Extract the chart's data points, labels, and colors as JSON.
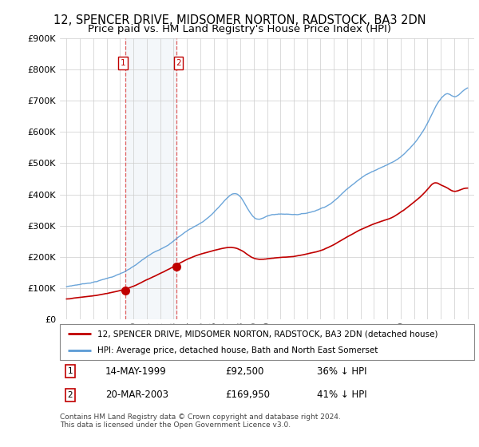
{
  "title": "12, SPENCER DRIVE, MIDSOMER NORTON, RADSTOCK, BA3 2DN",
  "subtitle": "Price paid vs. HM Land Registry's House Price Index (HPI)",
  "hpi_label": "HPI: Average price, detached house, Bath and North East Somerset",
  "property_label": "12, SPENCER DRIVE, MIDSOMER NORTON, RADSTOCK, BA3 2DN (detached house)",
  "footer": "Contains HM Land Registry data © Crown copyright and database right 2024.\nThis data is licensed under the Open Government Licence v3.0.",
  "sale1_date": "14-MAY-1999",
  "sale1_price": 92500,
  "sale1_label": "36% ↓ HPI",
  "sale2_date": "20-MAR-2003",
  "sale2_price": 169950,
  "sale2_label": "41% ↓ HPI",
  "sale1_x": 1999.37,
  "sale2_x": 2003.22,
  "ylim": [
    0,
    900000
  ],
  "xlim": [
    1994.5,
    2025.5
  ],
  "hpi_color": "#5b9bd5",
  "property_color": "#c00000",
  "vline_color": "#e06060",
  "highlight_color": "#dce6f1",
  "title_fontsize": 10.5,
  "subtitle_fontsize": 9.5,
  "background_color": "#ffffff"
}
